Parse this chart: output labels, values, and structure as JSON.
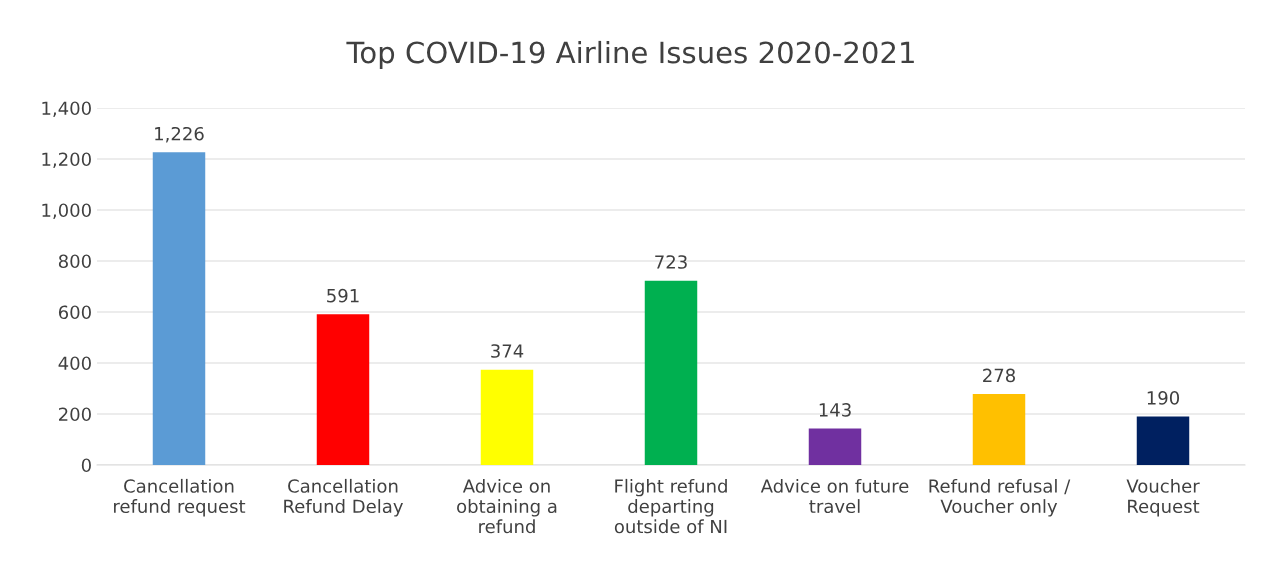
{
  "chart_data": {
    "type": "bar",
    "title": "Top COVID-19 Airline Issues 2020-2021",
    "categories": [
      "Cancellation\nrefund request",
      "Cancellation\nRefund Delay",
      "Advice on\nobtaining a\nrefund",
      "Flight refund\ndeparting\noutside of NI",
      "Advice on future\ntravel",
      "Refund refusal /\nVoucher only",
      "Voucher\nRequest"
    ],
    "values": [
      1226,
      591,
      374,
      723,
      143,
      278,
      190
    ],
    "colors": [
      "#5b9bd5",
      "#ff0000",
      "#ffff00",
      "#00b050",
      "#7030a0",
      "#ffc000",
      "#002060"
    ],
    "ylim": [
      0,
      1400
    ],
    "yticks": [
      {
        "value": 0,
        "label": "0"
      },
      {
        "value": 200,
        "label": "200"
      },
      {
        "value": 400,
        "label": "400"
      },
      {
        "value": 600,
        "label": "600"
      },
      {
        "value": 800,
        "label": "800"
      },
      {
        "value": 1000,
        "label": "1,000"
      },
      {
        "value": 1200,
        "label": "1,200"
      },
      {
        "value": 1400,
        "label": "1,400"
      }
    ],
    "value_labels": [
      "1,226",
      "591",
      "374",
      "723",
      "143",
      "278",
      "190"
    ],
    "grid": "y",
    "legend": false
  }
}
